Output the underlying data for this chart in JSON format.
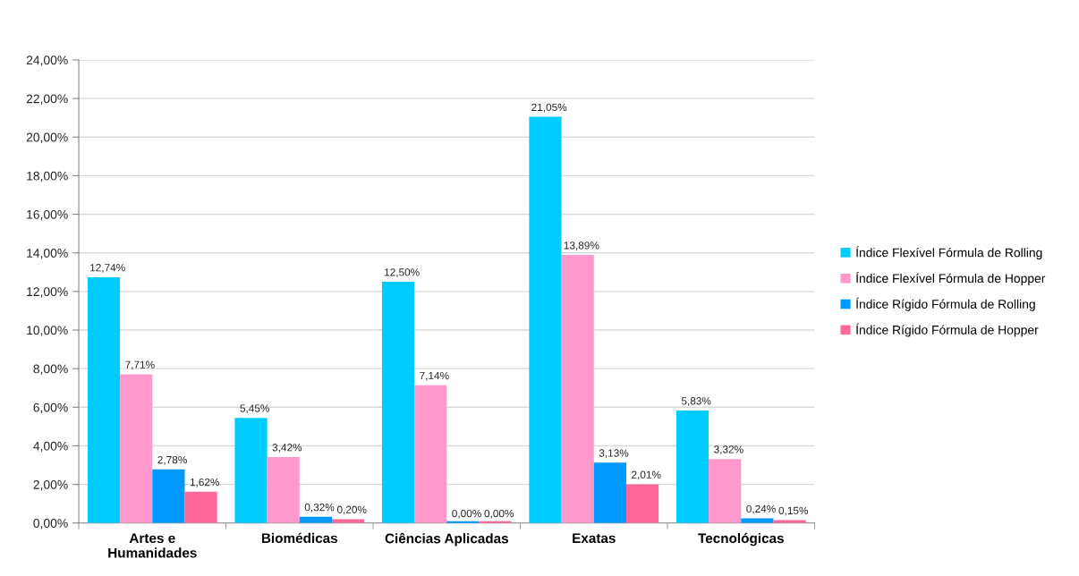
{
  "chart_data": {
    "type": "bar",
    "categories": [
      "Artes e\nHumanidades",
      "Biomédicas",
      "Ciências Aplicadas",
      "Exatas",
      "Tecnológicas"
    ],
    "series": [
      {
        "name": "Índice Flexível Fórmula de Rolling",
        "color": "#00ccff",
        "values": [
          12.74,
          5.45,
          12.5,
          21.05,
          5.83
        ],
        "value_labels": [
          "12,74%",
          "5,45%",
          "12,50%",
          "21,05%",
          "5,83%"
        ]
      },
      {
        "name": "Índice Flexível Fórmula de Hopper",
        "color": "#ff99cc",
        "values": [
          7.71,
          3.42,
          7.14,
          13.89,
          3.32
        ],
        "value_labels": [
          "7,71%",
          "3,42%",
          "7,14%",
          "13,89%",
          "3,32%"
        ]
      },
      {
        "name": "Índice Rígido Fórmula de Rolling",
        "color": "#0099ff",
        "values": [
          2.78,
          0.32,
          0.0,
          3.13,
          0.24
        ],
        "value_labels": [
          "2,78%",
          "0,32%",
          "0,00%",
          "3,13%",
          "0,24%"
        ]
      },
      {
        "name": "Índice Rígido Fórmula de Hopper",
        "color": "#ff6699",
        "values": [
          1.62,
          0.2,
          0.0,
          2.01,
          0.15
        ],
        "value_labels": [
          "1,62%",
          "0,20%",
          "0,00%",
          "2,01%",
          "0,15%"
        ]
      }
    ],
    "ylim": [
      0,
      24
    ],
    "yticks": [
      {
        "value": 0,
        "label": "0,00%"
      },
      {
        "value": 2,
        "label": "2,00%"
      },
      {
        "value": 4,
        "label": "4,00%"
      },
      {
        "value": 6,
        "label": "6,00%"
      },
      {
        "value": 8,
        "label": "8,00%"
      },
      {
        "value": 10,
        "label": "10,00%"
      },
      {
        "value": 12,
        "label": "12,00%"
      },
      {
        "value": 14,
        "label": "14,00%"
      },
      {
        "value": 16,
        "label": "16,00%"
      },
      {
        "value": 18,
        "label": "18,00%"
      },
      {
        "value": 20,
        "label": "20,00%"
      },
      {
        "value": 22,
        "label": "22,00%"
      },
      {
        "value": 24,
        "label": "24,00%"
      }
    ],
    "grid": "y",
    "legend": "right"
  }
}
